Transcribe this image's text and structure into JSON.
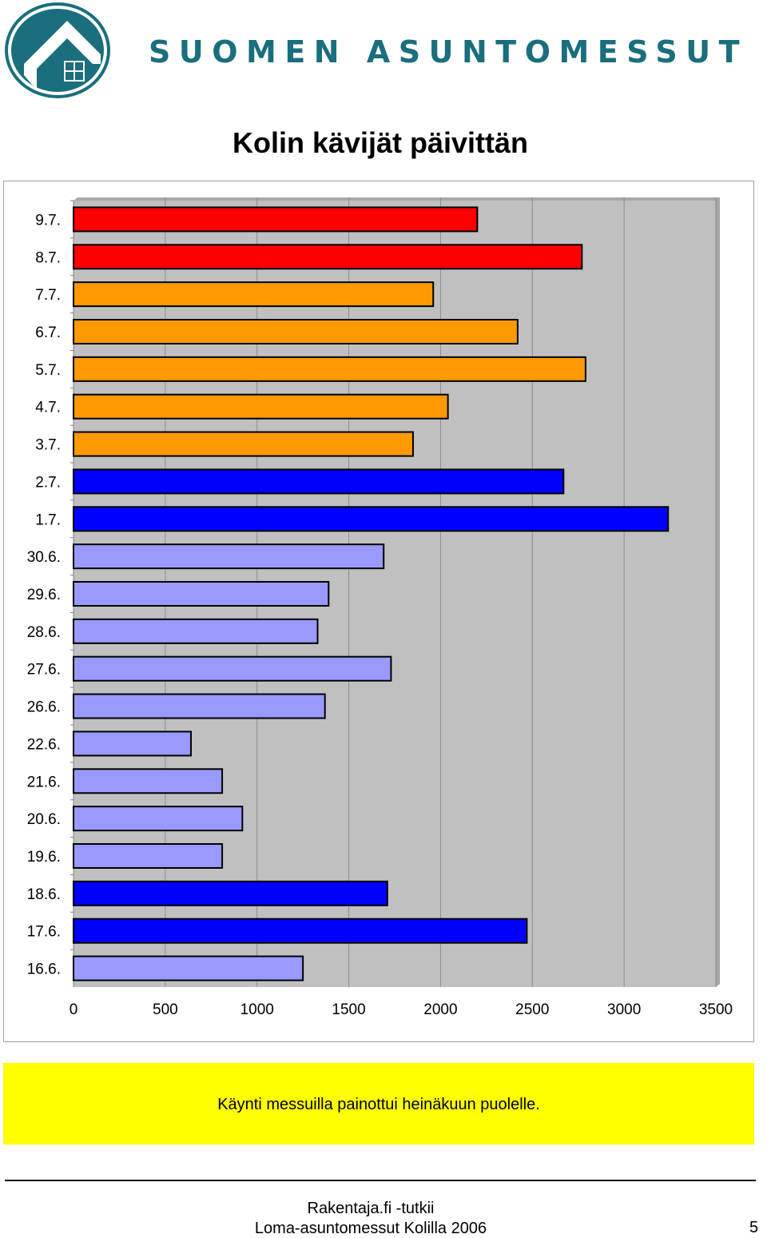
{
  "header": {
    "brand_text": "SUOMEN ASUNTOMESSUT",
    "logo_icon": "house-logo-icon",
    "brand_color": "#1a6e7d"
  },
  "chart_data": {
    "type": "bar",
    "orientation": "horizontal",
    "title": "Kolin kävijät päivittän",
    "categories": [
      "9.7.",
      "8.7.",
      "7.7.",
      "6.7.",
      "5.7.",
      "4.7.",
      "3.7.",
      "2.7.",
      "1.7.",
      "30.6.",
      "29.6.",
      "28.6.",
      "27.6.",
      "26.6.",
      "22.6.",
      "21.6.",
      "20.6.",
      "19.6.",
      "18.6.",
      "17.6.",
      "16.6."
    ],
    "values": [
      2200,
      2770,
      1960,
      2420,
      2790,
      2040,
      1850,
      2670,
      3240,
      1690,
      1390,
      1330,
      1730,
      1370,
      640,
      810,
      920,
      810,
      1710,
      2470,
      1250
    ],
    "bar_colors": [
      "#ff0000",
      "#ff0000",
      "#ff9900",
      "#ff9900",
      "#ff9900",
      "#ff9900",
      "#ff9900",
      "#0000ff",
      "#0000ff",
      "#9999ff",
      "#9999ff",
      "#9999ff",
      "#9999ff",
      "#9999ff",
      "#9999ff",
      "#9999ff",
      "#9999ff",
      "#9999ff",
      "#0000ff",
      "#0000ff",
      "#9999ff"
    ],
    "x_ticks": [
      "0",
      "500",
      "1000",
      "1500",
      "2000",
      "2500",
      "3000",
      "3500"
    ],
    "xlim": [
      0,
      3500
    ],
    "grid": true,
    "plot_background": "#c0c0c0",
    "legend": "none"
  },
  "note": {
    "text": "Käynti messuilla painottui heinäkuun puolelle.",
    "background": "#ffff00"
  },
  "footer": {
    "line1": "Rakentaja.fi -tutkii",
    "line2": "Loma-asuntomessut Kolilla 2006",
    "page_number": "5"
  }
}
